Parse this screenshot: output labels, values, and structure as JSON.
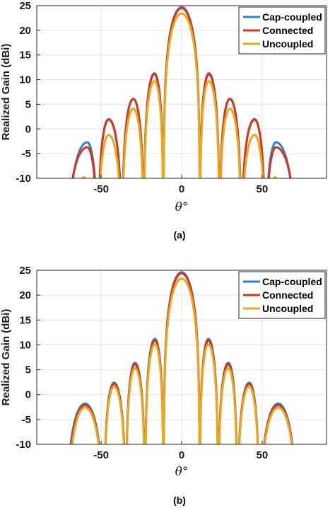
{
  "chart_data": [
    {
      "type": "line",
      "caption": "(a)",
      "xlabel": "θ°",
      "ylabel": "Realized Gain (dBi)",
      "xlim": [
        -90,
        90
      ],
      "ylim": [
        -10,
        25
      ],
      "xticks": [
        -50,
        0,
        50
      ],
      "yticks": [
        -10,
        -5,
        0,
        5,
        10,
        15,
        20,
        25
      ],
      "grid": true,
      "legend_position": "top-right",
      "series": [
        {
          "name": "Cap-coupled",
          "color": "#2f7fd8",
          "lobes": [
            [
              -64.6,
              -58.6,
              -2.7
            ],
            [
              -52.0,
              -45.3,
              2.0
            ],
            [
              -37.0,
              -30.0,
              6.1
            ],
            [
              -23.5,
              -16.9,
              11.3
            ],
            [
              -11.3,
              0,
              24.7
            ],
            [
              11.3,
              16.9,
              11.3
            ],
            [
              23.5,
              30.0,
              6.1
            ],
            [
              37.0,
              45.3,
              2.0
            ],
            [
              52.0,
              58.6,
              -2.7
            ]
          ],
          "edge_left": [
            -71.0,
            -64.6
          ],
          "edge_right": [
            64.6,
            71.0
          ]
        },
        {
          "name": "Connected",
          "color": "#d4381c",
          "lobes": [
            [
              -64.6,
              -58.6,
              -3.7
            ],
            [
              -52.0,
              -45.3,
              1.9
            ],
            [
              -37.0,
              -30.0,
              6.1
            ],
            [
              -23.5,
              -16.9,
              11.1
            ],
            [
              -11.3,
              0,
              24.5
            ],
            [
              11.3,
              16.9,
              11.1
            ],
            [
              23.5,
              30.0,
              6.1
            ],
            [
              37.0,
              45.3,
              1.9
            ],
            [
              52.0,
              58.6,
              -3.7
            ]
          ],
          "edge_left": [
            -72.0,
            -64.6
          ],
          "edge_right": [
            64.6,
            72.0
          ]
        },
        {
          "name": "Uncoupled",
          "color": "#e8a91e",
          "lobes": [
            [
              -64.0,
              -61.0,
              -9.8
            ],
            [
              -52.0,
              -45.3,
              -1.2
            ],
            [
              -37.0,
              -30.0,
              4.1
            ],
            [
              -23.5,
              -16.9,
              9.7
            ],
            [
              -11.3,
              0,
              23.4
            ],
            [
              11.3,
              16.9,
              9.7
            ],
            [
              23.5,
              30.0,
              4.1
            ],
            [
              37.0,
              45.3,
              -1.2
            ],
            [
              52.0,
              58.0,
              -9.8
            ]
          ],
          "edge_left": null,
          "edge_right": null
        }
      ]
    },
    {
      "type": "line",
      "caption": "(b)",
      "xlabel": "θ°",
      "ylabel": "Realized Gain (dBi)",
      "xlim": [
        -90,
        90
      ],
      "ylim": [
        -10,
        25
      ],
      "xticks": [
        -50,
        0,
        50
      ],
      "yticks": [
        -10,
        -5,
        0,
        5,
        10,
        15,
        20,
        25
      ],
      "grid": true,
      "legend_position": "top-right",
      "series": [
        {
          "name": "Cap-coupled",
          "color": "#2f7fd8",
          "lobes": [
            [
              -72.0,
              -60.0,
              -1.8
            ],
            [
              -48.3,
              -42.0,
              2.4
            ],
            [
              -34.6,
              -29.0,
              6.4
            ],
            [
              -22.7,
              -16.6,
              11.2
            ],
            [
              -11.2,
              0,
              24.6
            ],
            [
              11.2,
              16.6,
              11.2
            ],
            [
              22.7,
              29.0,
              6.4
            ],
            [
              34.6,
              42.0,
              2.4
            ],
            [
              48.3,
              60.0,
              -1.8
            ]
          ],
          "edge_left": null,
          "edge_right": null
        },
        {
          "name": "Connected",
          "color": "#d4381c",
          "lobes": [
            [
              -71.5,
              -60.0,
              -2.1
            ],
            [
              -48.3,
              -42.0,
              2.2
            ],
            [
              -34.6,
              -29.0,
              6.1
            ],
            [
              -22.7,
              -16.6,
              10.9
            ],
            [
              -11.2,
              0,
              24.4
            ],
            [
              11.2,
              16.6,
              10.9
            ],
            [
              22.7,
              29.0,
              6.1
            ],
            [
              34.6,
              42.0,
              2.2
            ],
            [
              48.3,
              60.0,
              -2.1
            ]
          ],
          "edge_left": null,
          "edge_right": null
        },
        {
          "name": "Uncoupled",
          "color": "#e8a91e",
          "lobes": [
            [
              -71.0,
              -60.0,
              -2.6
            ],
            [
              -48.3,
              -42.0,
              1.6
            ],
            [
              -34.6,
              -29.0,
              5.3
            ],
            [
              -22.7,
              -16.6,
              10.1
            ],
            [
              -11.2,
              0,
              23.3
            ],
            [
              11.2,
              16.6,
              10.1
            ],
            [
              22.7,
              29.0,
              5.3
            ],
            [
              34.6,
              42.0,
              1.6
            ],
            [
              48.3,
              60.0,
              -2.6
            ]
          ],
          "edge_left": null,
          "edge_right": null
        }
      ]
    }
  ]
}
